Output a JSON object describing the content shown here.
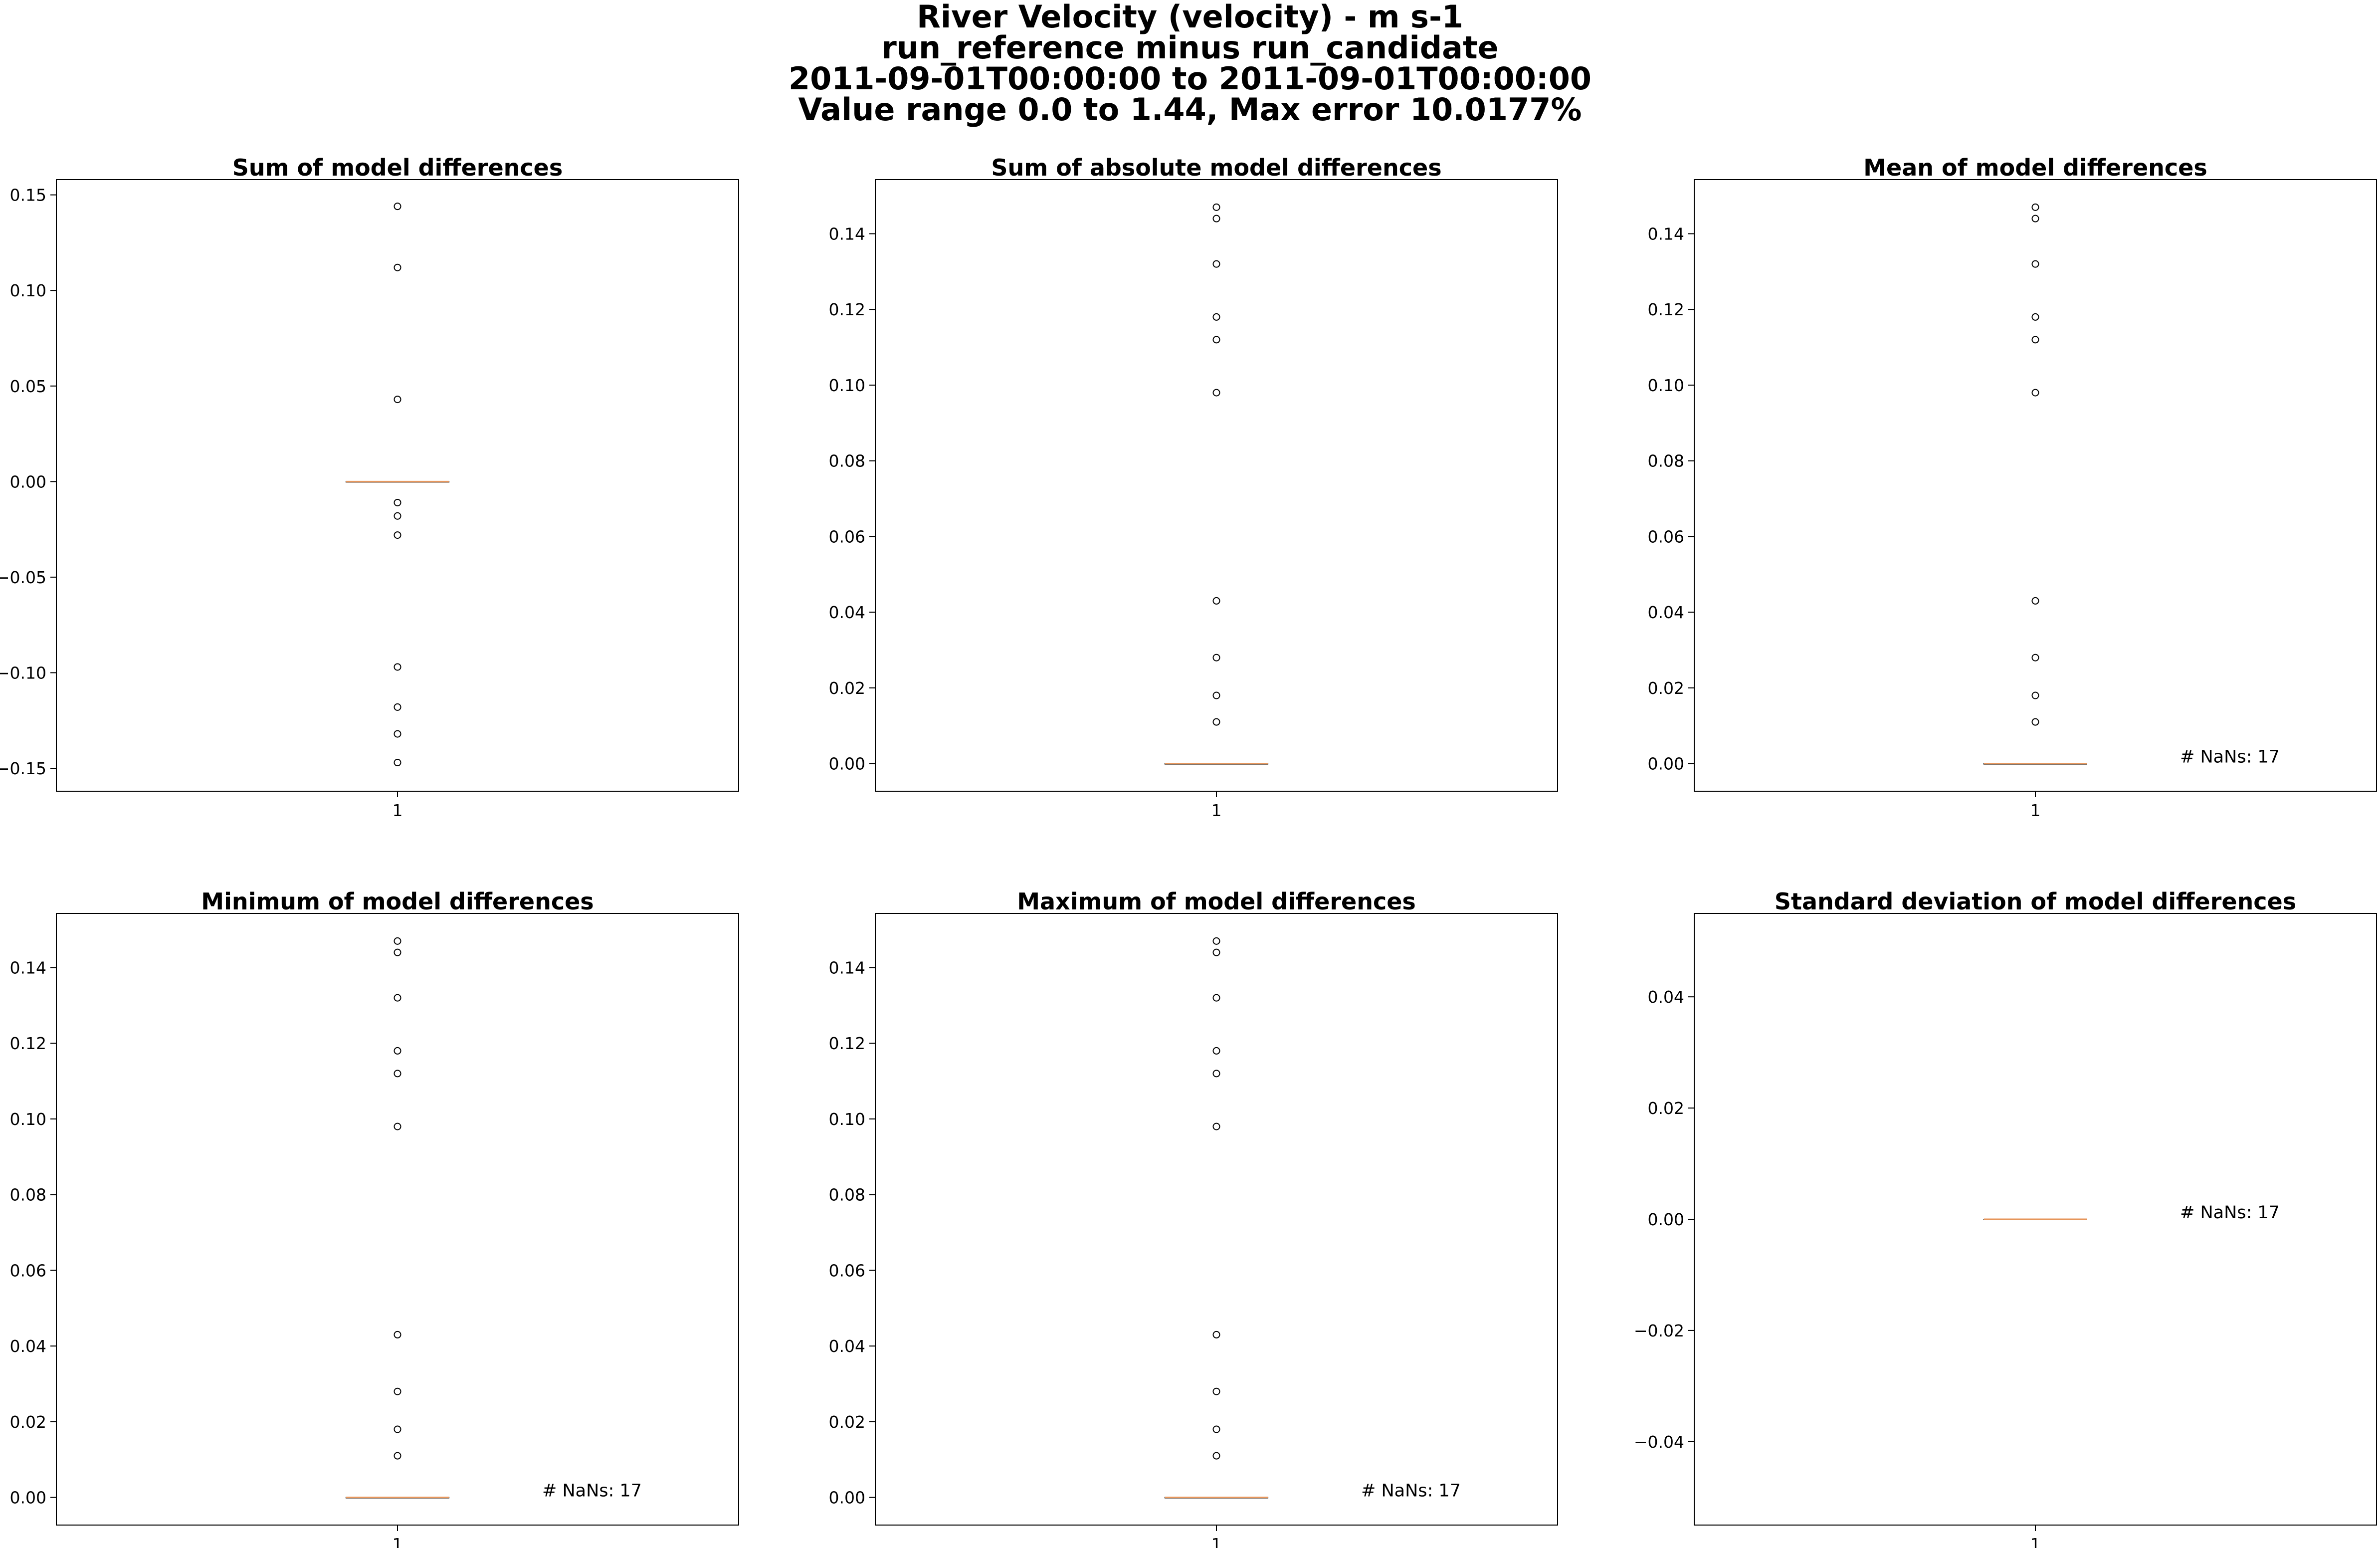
{
  "figure": {
    "title_lines": [
      "River Velocity (velocity) - m s-1",
      "run_reference minus run_candidate",
      "2011-09-01T00:00:00 to 2011-09-01T00:00:00",
      "Value range 0.0 to 1.44, Max error 10.0177%"
    ]
  },
  "colors": {
    "median": "#e8975c",
    "box": "#000000",
    "outlier": "#000000",
    "axes": "#000000"
  },
  "chart_data": [
    {
      "type": "boxplot",
      "title": "Sum of model differences",
      "categories": [
        "1"
      ],
      "ylim": [
        -0.162,
        0.158
      ],
      "yticks": [
        -0.15,
        -0.1,
        -0.05,
        0.0,
        0.05,
        0.1,
        0.15
      ],
      "ytick_labels": [
        "−0.15",
        "−0.10",
        "−0.05",
        "0.00",
        "0.05",
        "0.10",
        "0.15"
      ],
      "median": 0.0,
      "q1": 0.0,
      "q3": 0.0,
      "whisker_low": 0.0,
      "whisker_high": 0.0,
      "outliers": [
        0.144,
        0.112,
        0.043,
        -0.011,
        -0.018,
        -0.028,
        -0.097,
        -0.118,
        -0.132,
        -0.147
      ],
      "annotation": ""
    },
    {
      "type": "boxplot",
      "title": "Sum of absolute model differences",
      "categories": [
        "1"
      ],
      "ylim": [
        -0.0073,
        0.1543
      ],
      "yticks": [
        0.0,
        0.02,
        0.04,
        0.06,
        0.08,
        0.1,
        0.12,
        0.14
      ],
      "ytick_labels": [
        "0.00",
        "0.02",
        "0.04",
        "0.06",
        "0.08",
        "0.10",
        "0.12",
        "0.14"
      ],
      "median": 0.0,
      "q1": 0.0,
      "q3": 0.0,
      "whisker_low": 0.0,
      "whisker_high": 0.0,
      "outliers": [
        0.147,
        0.144,
        0.132,
        0.118,
        0.112,
        0.098,
        0.043,
        0.028,
        0.018,
        0.011
      ],
      "annotation": ""
    },
    {
      "type": "boxplot",
      "title": "Mean of model differences",
      "categories": [
        "1"
      ],
      "ylim": [
        -0.0073,
        0.1543
      ],
      "yticks": [
        0.0,
        0.02,
        0.04,
        0.06,
        0.08,
        0.1,
        0.12,
        0.14
      ],
      "ytick_labels": [
        "0.00",
        "0.02",
        "0.04",
        "0.06",
        "0.08",
        "0.10",
        "0.12",
        "0.14"
      ],
      "median": 0.0,
      "q1": 0.0,
      "q3": 0.0,
      "whisker_low": 0.0,
      "whisker_high": 0.0,
      "outliers": [
        0.147,
        0.144,
        0.132,
        0.118,
        0.112,
        0.098,
        0.043,
        0.028,
        0.018,
        0.011
      ],
      "annotation": "# NaNs: 17"
    },
    {
      "type": "boxplot",
      "title": "Minimum of model differences",
      "categories": [
        "1"
      ],
      "ylim": [
        -0.0073,
        0.1543
      ],
      "yticks": [
        0.0,
        0.02,
        0.04,
        0.06,
        0.08,
        0.1,
        0.12,
        0.14
      ],
      "ytick_labels": [
        "0.00",
        "0.02",
        "0.04",
        "0.06",
        "0.08",
        "0.10",
        "0.12",
        "0.14"
      ],
      "median": 0.0,
      "q1": 0.0,
      "q3": 0.0,
      "whisker_low": 0.0,
      "whisker_high": 0.0,
      "outliers": [
        0.147,
        0.144,
        0.132,
        0.118,
        0.112,
        0.098,
        0.043,
        0.028,
        0.018,
        0.011
      ],
      "annotation": "# NaNs: 17"
    },
    {
      "type": "boxplot",
      "title": "Maximum of model differences",
      "categories": [
        "1"
      ],
      "ylim": [
        -0.0073,
        0.1543
      ],
      "yticks": [
        0.0,
        0.02,
        0.04,
        0.06,
        0.08,
        0.1,
        0.12,
        0.14
      ],
      "ytick_labels": [
        "0.00",
        "0.02",
        "0.04",
        "0.06",
        "0.08",
        "0.10",
        "0.12",
        "0.14"
      ],
      "median": 0.0,
      "q1": 0.0,
      "q3": 0.0,
      "whisker_low": 0.0,
      "whisker_high": 0.0,
      "outliers": [
        0.147,
        0.144,
        0.132,
        0.118,
        0.112,
        0.098,
        0.043,
        0.028,
        0.018,
        0.011
      ],
      "annotation": "# NaNs: 17"
    },
    {
      "type": "boxplot",
      "title": "Standard deviation of model differences",
      "categories": [
        "1"
      ],
      "ylim": [
        -0.055,
        0.055
      ],
      "yticks": [
        -0.04,
        -0.02,
        0.0,
        0.02,
        0.04
      ],
      "ytick_labels": [
        "−0.04",
        "−0.02",
        "0.00",
        "0.02",
        "0.04"
      ],
      "median": 0.0,
      "q1": 0.0,
      "q3": 0.0,
      "whisker_low": 0.0,
      "whisker_high": 0.0,
      "outliers": [],
      "annotation": "# NaNs: 17"
    }
  ]
}
